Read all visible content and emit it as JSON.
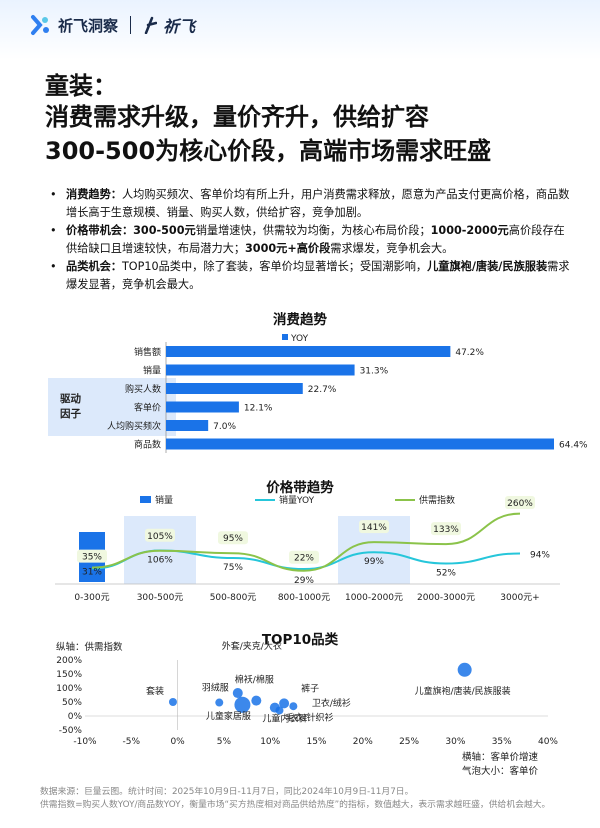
{
  "header": {
    "brand": "祈飞洞察",
    "brand2": "祈飞"
  },
  "title": {
    "line1": "童装：",
    "line2": "消费需求升级，量价齐升，供给扩容",
    "line3": "300-500为核心价段，高端市场需求旺盛"
  },
  "bullets": [
    {
      "head": "消费趋势：",
      "parts": [
        {
          "t": "人均购买频次、客单价均有所上升，用户消费需求释放，愿意为产品支付更高价格，商品数增长高于生意规模、销量、购买人数，供给扩容，竞争加剧。",
          "b": false
        }
      ]
    },
    {
      "head": "价格带机会：",
      "parts": [
        {
          "t": "300-500元",
          "b": true
        },
        {
          "t": "销量增速快，供需较为均衡，为核心布局价段；",
          "b": false
        },
        {
          "t": "1000-2000元",
          "b": true
        },
        {
          "t": "高价段存在供给缺口且增速较快，布局潜力大；",
          "b": false
        },
        {
          "t": "3000元+高价段",
          "b": true
        },
        {
          "t": "需求爆发，竞争机会大。",
          "b": false
        }
      ]
    },
    {
      "head": "品类机会：",
      "parts": [
        {
          "t": "TOP10品类中，除了套装，客单价均显著增长；受国潮影响，",
          "b": false
        },
        {
          "t": "儿童旗袍/唐装/民族服装",
          "b": true
        },
        {
          "t": "需求爆发显著，竞争机会最大。",
          "b": false
        }
      ]
    }
  ],
  "chart_data": [
    {
      "type": "bar",
      "orientation": "horizontal",
      "title": "消费趋势",
      "legend": [
        "YOY"
      ],
      "categories": [
        "销售额",
        "销量",
        "购买人数",
        "客单价",
        "人均购买频次",
        "商品数"
      ],
      "values": [
        47.2,
        31.3,
        22.7,
        12.1,
        7.0,
        64.4
      ],
      "value_labels": [
        "47.2%",
        "31.3%",
        "22.7%",
        "12.1%",
        "7.0%",
        "64.4%"
      ],
      "group_label": "驱动\n因子",
      "group_label_line1": "驱动",
      "group_label_line2": "因子",
      "color": "#1a73e8"
    },
    {
      "type": "bar",
      "title": "价格带趋势",
      "categories": [
        "0-300元",
        "300-500元",
        "500-800元",
        "800-1000元",
        "1000-2000元",
        "2000-3000元",
        "3000元+"
      ],
      "series": [
        {
          "name": "销量",
          "kind": "bar",
          "values": [
            1,
            null,
            null,
            null,
            null,
            null,
            null
          ],
          "color": "#1a73e8"
        },
        {
          "name": "销量YOY",
          "kind": "line",
          "values": [
            31,
            106,
            75,
            29,
            99,
            52,
            94
          ],
          "labels": [
            "31%",
            "106%",
            "75%",
            "29%",
            "99%",
            "52%",
            "94%"
          ],
          "color": "#26c6da"
        },
        {
          "name": "供需指数",
          "kind": "line",
          "values": [
            35,
            105,
            95,
            22,
            141,
            133,
            260
          ],
          "labels": [
            "35%",
            "105%",
            "95%",
            "22%",
            "141%",
            "133%",
            "260%"
          ],
          "color": "#8bc34a"
        }
      ],
      "highlight_categories": [
        "300-500元",
        "1000-2000元"
      ]
    },
    {
      "type": "scatter",
      "title": "TOP10品类",
      "ylabel": "纵轴：供需指数",
      "xlabel": "横轴：客单价增速",
      "size_label": "气泡大小：客单价",
      "x_ticks": [
        "-10%",
        "-5%",
        "0%",
        "5%",
        "10%",
        "15%",
        "20%",
        "25%",
        "30%",
        "35%",
        "40%"
      ],
      "y_ticks": [
        "200%",
        "150%",
        "100%",
        "50%",
        "0%",
        "-50%"
      ],
      "xlim": [
        -10,
        40
      ],
      "ylim": [
        -50,
        200
      ],
      "points": [
        {
          "name": "套装",
          "x": -0.5,
          "y": 50,
          "size": 4
        },
        {
          "name": "外套/夹克/大衣",
          "x": 6.5,
          "y": 82,
          "size": 5
        },
        {
          "name": "羽绒服",
          "x": 4.5,
          "y": 48,
          "size": 4
        },
        {
          "name": "棉袄/棉服",
          "x": 8.5,
          "y": 55,
          "size": 5
        },
        {
          "name": "儿童家居服",
          "x": 7,
          "y": 40,
          "size": 8
        },
        {
          "name": "儿童内衣裤",
          "x": 10.5,
          "y": 30,
          "size": 5
        },
        {
          "name": "裤子",
          "x": 11.5,
          "y": 45,
          "size": 5
        },
        {
          "name": "卫衣/绒衫",
          "x": 12.5,
          "y": 35,
          "size": 4
        },
        {
          "name": "毛衣/针织衫",
          "x": 11,
          "y": 20,
          "size": 4
        },
        {
          "name": "儿童旗袍/唐装/民族服装",
          "x": 31,
          "y": 165,
          "size": 7
        }
      ],
      "color": "#1a73e8"
    }
  ],
  "footer": {
    "line1": "数据来源：巨量云图。统计时间：2025年10月9日-11月7日，同比2024年10月9日-11月7日。",
    "line2": "供需指数=购买人数YOY/商品数YOY，衡量市场“买方热度相对商品供给热度”的指标，数值越大，表示需求越旺盛，供给机会越大。"
  }
}
